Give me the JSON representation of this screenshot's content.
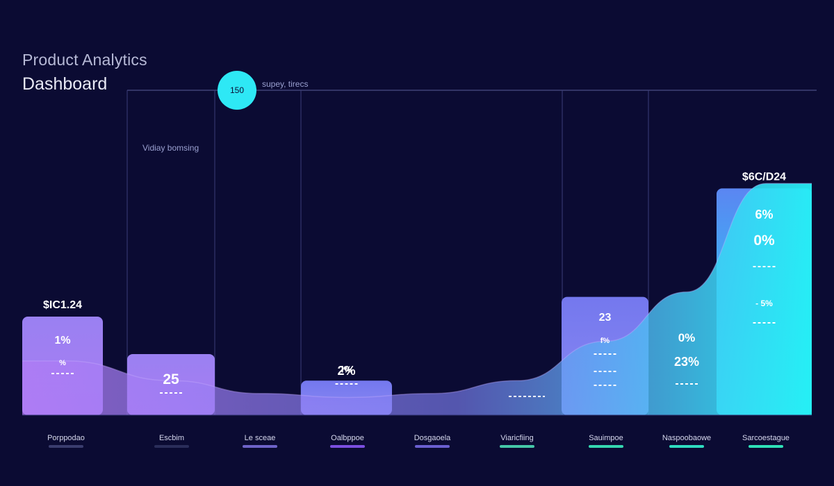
{
  "header": {
    "title": "Product Analytics",
    "subtitle": "Dashboard"
  },
  "annotations": {
    "badge": "150",
    "badge_caption": "supey, tirecs",
    "note": "Vidiay bomsing"
  },
  "colors": {
    "background": "#0b0b33",
    "bar_purple": "#9b7cf0",
    "bar_blue": "#7a86f2",
    "bar_cyan": "#2fe6f5",
    "badge": "#2ee8f5"
  },
  "chart_data": {
    "type": "bar",
    "categories": [
      "Porppodao",
      "Escbim",
      "Le sceae",
      "Oalbppoe",
      "Dosgaoela",
      "Viaricfiing",
      "Sauimpoe",
      "Naspoobaowe",
      "Sarcoestague"
    ],
    "values": [
      1.0,
      0.62,
      null,
      0.35,
      null,
      null,
      1.2,
      null,
      2.3
    ],
    "top_labels": [
      "$IC1.24",
      "",
      "",
      "i%",
      "",
      "",
      "",
      "",
      "$6C/D24"
    ],
    "bar_labels": [
      [
        "1%",
        "%"
      ],
      [
        "25"
      ],
      [],
      [
        "2%"
      ],
      [],
      [],
      [
        "23",
        "f%"
      ],
      [
        "0%",
        "23%"
      ],
      [
        "6%",
        "0%",
        "- 5%"
      ]
    ],
    "area_series": {
      "values": [
        0.55,
        0.35,
        0.22,
        0.18,
        0.22,
        0.35,
        0.75,
        1.25,
        2.35
      ]
    },
    "category_colors": [
      "#3a3d6e",
      "#2a2d5a",
      "#6e63c9",
      "#7b4fe0",
      "#6a5fd0",
      "#45c7a8",
      "#35d6b0",
      "#2fdcc0",
      "#2fe0b8"
    ],
    "grid": true,
    "ylim": [
      0,
      3
    ]
  }
}
